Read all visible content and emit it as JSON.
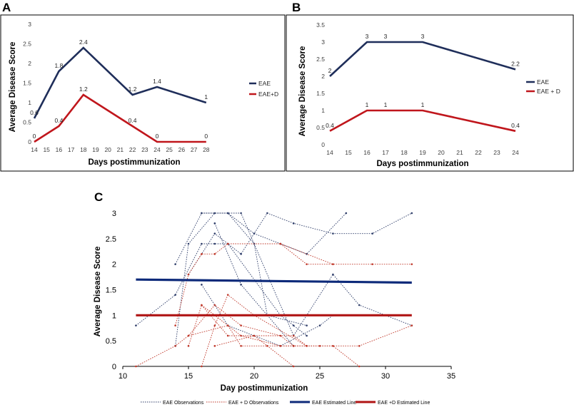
{
  "colors": {
    "eae": "#1f2e5a",
    "eaed": "#c0161c",
    "obs_eae": "#2f3e6a",
    "obs_eaed": "#c0392b",
    "est_eae": "#0d2a7a",
    "est_eaed": "#b01414"
  },
  "chart_data": [
    {
      "id": "A",
      "panel_label": "A",
      "type": "line",
      "xlabel": "Days postimmunization",
      "ylabel": "Average Disease Score",
      "x_ticks": [
        "14",
        "15",
        "16",
        "17",
        "18",
        "19",
        "20",
        "21",
        "22",
        "23",
        "24",
        "25",
        "26",
        "27",
        "28"
      ],
      "y_ticks": [
        "0",
        "0.5",
        "1",
        "1.5",
        "2",
        "2.5",
        "3"
      ],
      "ylim": [
        0,
        3
      ],
      "series": [
        {
          "name": "EAE",
          "color_key": "eae",
          "x": [
            14,
            16,
            18,
            22,
            24,
            28
          ],
          "values": [
            0.6,
            1.8,
            2.4,
            1.2,
            1.4,
            1.0
          ],
          "labels": [
            "0.6",
            "1.8",
            "2.4",
            "1.2",
            "1.4",
            "1"
          ]
        },
        {
          "name": "EAE+D",
          "color_key": "eaed",
          "x": [
            14,
            16,
            18,
            22,
            24,
            28
          ],
          "values": [
            0,
            0.4,
            1.2,
            0.4,
            0,
            0
          ],
          "labels": [
            "0",
            "0.4",
            "1.2",
            "0.4",
            "0",
            "0"
          ]
        }
      ]
    },
    {
      "id": "B",
      "panel_label": "B",
      "type": "line",
      "xlabel": "Days postimmunization",
      "ylabel": "Average Disease Score",
      "x_ticks": [
        "14",
        "15",
        "16",
        "17",
        "18",
        "19",
        "20",
        "21",
        "22",
        "23",
        "24"
      ],
      "y_ticks": [
        "0",
        "0.5",
        "1",
        "1.5",
        "2",
        "2.5",
        "3",
        "3.5"
      ],
      "ylim": [
        0,
        3.5
      ],
      "series": [
        {
          "name": "EAE",
          "color_key": "eae",
          "x": [
            14,
            16,
            17,
            19,
            24
          ],
          "values": [
            2,
            3,
            3,
            3,
            2.2
          ],
          "labels": [
            "2",
            "3",
            "3",
            "3",
            "2.2"
          ]
        },
        {
          "name": "EAE + D",
          "color_key": "eaed",
          "x": [
            14,
            16,
            17,
            19,
            24
          ],
          "values": [
            0.4,
            1,
            1,
            1,
            0.4
          ],
          "labels": [
            "0.4",
            "1",
            "1",
            "1",
            "0.4"
          ]
        }
      ]
    },
    {
      "id": "C",
      "panel_label": "C",
      "type": "line",
      "xlabel": "Day postimmunization",
      "ylabel": "Average Disease Score",
      "x_ticks": [
        "10",
        "15",
        "20",
        "25",
        "30",
        "35"
      ],
      "x_tick_values": [
        10,
        15,
        20,
        25,
        30,
        35
      ],
      "y_ticks": [
        "0",
        "0.5",
        "1",
        "1.5",
        "2",
        "2.5",
        "3"
      ],
      "xlim": [
        10,
        35
      ],
      "ylim": [
        0,
        3
      ],
      "legend": [
        "EAE Observations",
        "EAE + D  Observations",
        "EAE Estimated Line",
        "EAE +D  Estimated Line"
      ],
      "estimated_lines": [
        {
          "name": "EAE Estimated Line",
          "color_key": "est_eae",
          "x": [
            11,
            32
          ],
          "values": [
            1.7,
            1.64
          ]
        },
        {
          "name": "EAE +D  Estimated Line",
          "color_key": "est_eaed",
          "x": [
            11,
            32
          ],
          "values": [
            1.0,
            1.0
          ]
        }
      ],
      "eae_observations": [
        {
          "x": [
            11,
            14,
            16,
            17,
            18,
            22,
            23,
            24
          ],
          "values": [
            0.8,
            1.4,
            2.4,
            2.4,
            2.4,
            1.0,
            0.8,
            0.6
          ]
        },
        {
          "x": [
            14,
            16,
            18,
            20,
            21,
            24
          ],
          "values": [
            2.0,
            3.0,
            3.0,
            2.4,
            1.0,
            0.8
          ]
        },
        {
          "x": [
            15,
            17,
            19,
            21,
            23,
            26,
            29,
            32
          ],
          "values": [
            1.8,
            2.6,
            2.2,
            3.0,
            2.8,
            2.6,
            2.6,
            3.0
          ]
        },
        {
          "x": [
            16,
            18,
            20,
            22,
            24,
            27
          ],
          "values": [
            3.0,
            3.0,
            2.6,
            2.4,
            2.2,
            3.0
          ]
        },
        {
          "x": [
            14,
            15,
            17,
            19,
            23,
            26,
            28,
            32
          ],
          "values": [
            0.4,
            2.4,
            3.0,
            3.0,
            0.6,
            1.8,
            1.2,
            0.8
          ]
        },
        {
          "x": [
            16,
            18,
            22,
            25,
            26
          ],
          "values": [
            1.6,
            0.8,
            0.4,
            0.8,
            1.0
          ]
        },
        {
          "x": [
            17,
            19,
            21,
            23
          ],
          "values": [
            2.8,
            1.6,
            1.0,
            0.4
          ]
        }
      ],
      "eaed_observations": [
        {
          "x": [
            14,
            15,
            16,
            17,
            18,
            22,
            24,
            26
          ],
          "values": [
            0.8,
            1.8,
            2.2,
            2.2,
            2.4,
            2.4,
            2.0,
            2.0
          ]
        },
        {
          "x": [
            15,
            16,
            18,
            20,
            23,
            24
          ],
          "values": [
            0.4,
            1.2,
            0.6,
            0.6,
            0.6,
            0.4
          ]
        },
        {
          "x": [
            11,
            14,
            15,
            17,
            19,
            22,
            23
          ],
          "values": [
            0,
            0.4,
            0.6,
            1.2,
            0.8,
            0.6,
            0.4
          ]
        },
        {
          "x": [
            16,
            17,
            18,
            20,
            24
          ],
          "values": [
            0,
            0.8,
            1.4,
            1.0,
            0.4
          ]
        },
        {
          "x": [
            15,
            18,
            19,
            23,
            26,
            28
          ],
          "values": [
            0.6,
            0.8,
            0.4,
            0.4,
            0.4,
            0
          ]
        },
        {
          "x": [
            16,
            17,
            19,
            22,
            23,
            25,
            28,
            32
          ],
          "values": [
            1.2,
            1.0,
            0.6,
            0.4,
            0.4,
            0.4,
            0.4,
            0.8
          ]
        },
        {
          "x": [
            17,
            20,
            21,
            23
          ],
          "values": [
            0.4,
            0.6,
            0.4,
            0
          ]
        },
        {
          "x": [
            22,
            26,
            29,
            32
          ],
          "values": [
            2.4,
            2.0,
            2.0,
            2.0
          ]
        }
      ]
    }
  ]
}
